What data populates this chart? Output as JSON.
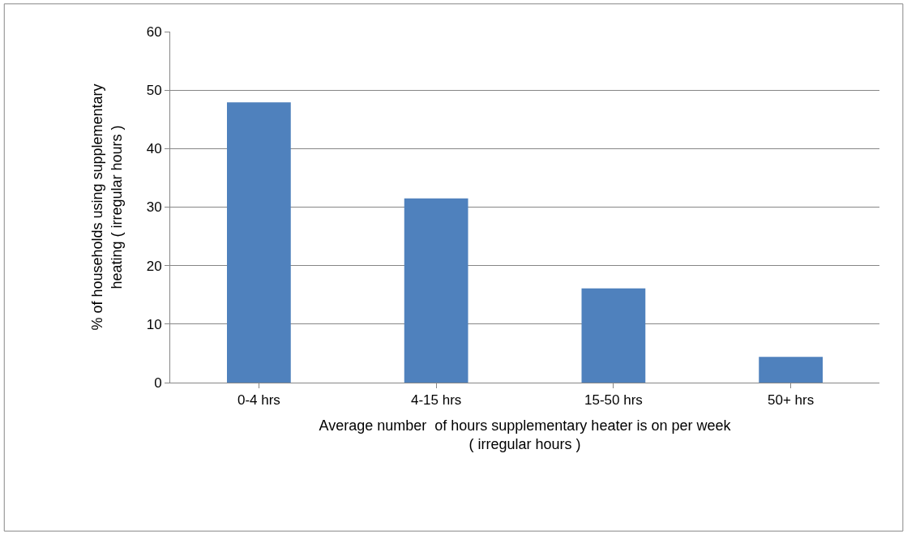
{
  "chart_data": {
    "type": "bar",
    "xlabel": "Average number  of hours supplementary heater is on per week\n( irregular hours )",
    "ylabel": "% of households using supplementary\nheating ( irregular hours )",
    "categories": [
      "0-4 hrs",
      "4-15 hrs",
      "15-50 hrs",
      "50+ hrs"
    ],
    "values": [
      47.9,
      31.5,
      16.1,
      4.4
    ],
    "color": "#4f81bd",
    "ylim": [
      0,
      60
    ],
    "yticks": [
      0,
      10,
      20,
      30,
      40,
      50,
      60
    ],
    "grid": "y"
  }
}
